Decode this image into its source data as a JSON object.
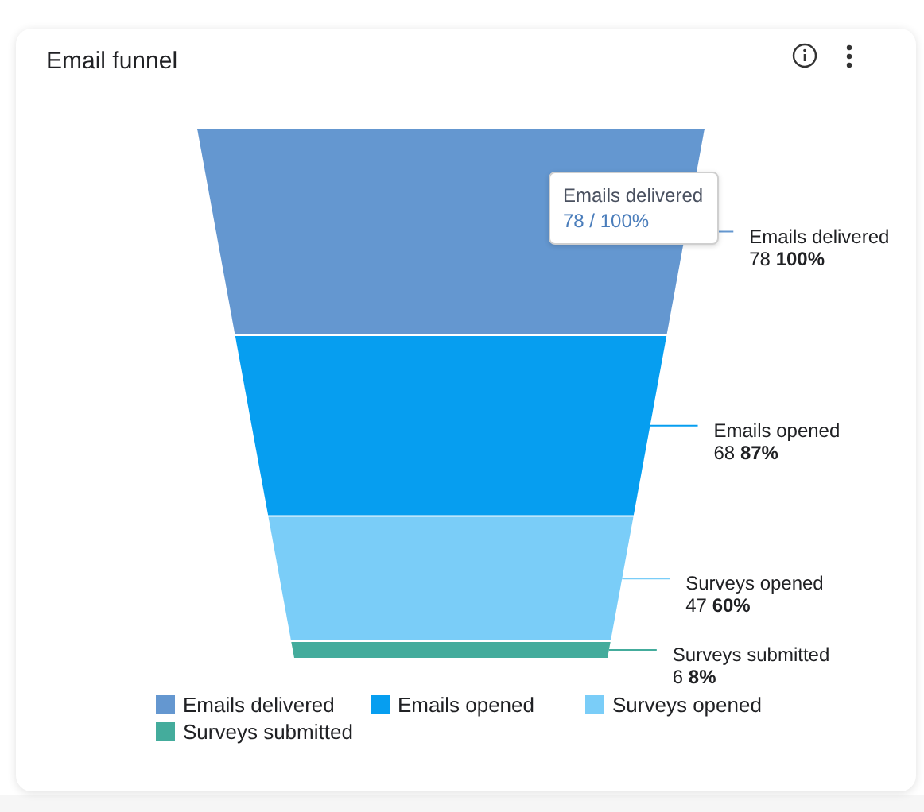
{
  "chart_data": {
    "type": "other",
    "title": "Email funnel",
    "series": [
      {
        "name": "Emails delivered",
        "color": "#6497d0",
        "values": [
          78
        ]
      },
      {
        "name": "Emails opened",
        "color": "#069ef0",
        "values": [
          68
        ]
      },
      {
        "name": "Surveys opened",
        "color": "#7acdf8",
        "values": [
          47
        ]
      },
      {
        "name": "Surveys submitted",
        "color": "#44ac9c",
        "values": [
          6
        ]
      }
    ],
    "data_labels": true,
    "legend": "bottom",
    "annotations": [
      "100%",
      "87%",
      "60%",
      "8%",
      "Emails delivered\n78 / 100%"
    ]
  }
}
